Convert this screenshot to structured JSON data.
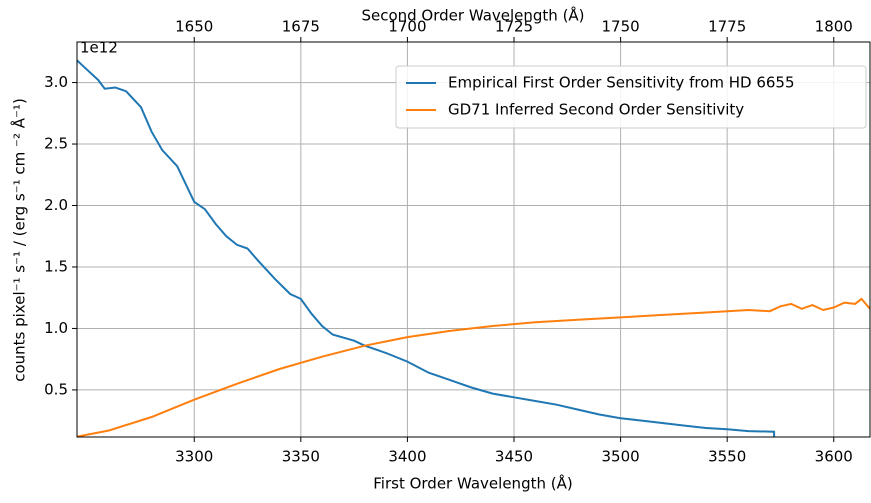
{
  "chart_data": {
    "type": "line",
    "xlabel": "First Order Wavelength (Å)",
    "x2label": "Second Order Wavelength (Å)",
    "ylabel": "counts pixel⁻¹ s⁻¹ / (erg s⁻¹ cm ⁻² Å⁻¹)",
    "y_offset_label": "1e12",
    "xlim": [
      3245,
      3617
    ],
    "xticks": [
      3300,
      3350,
      3400,
      3450,
      3500,
      3550,
      3600
    ],
    "x2lim": [
      1622.5,
      1808.5
    ],
    "x2ticks": [
      1650,
      1675,
      1700,
      1725,
      1750,
      1775,
      1800
    ],
    "ylim": [
      0.117,
      3.33
    ],
    "yticks": [
      0.5,
      {
        "value": 1,
        "label": "1.0"
      },
      1.5,
      {
        "value": 2,
        "label": "2.0"
      },
      2.5,
      {
        "value": 3,
        "label": "3.0"
      }
    ],
    "grid": true,
    "legend": "upper right",
    "series": [
      {
        "name": "Empirical First Order Sensitivity from HD 6655",
        "color": "#1f77b4",
        "x": [
          3245,
          3250,
          3255,
          3258,
          3263,
          3268,
          3275,
          3280,
          3285,
          3292,
          3300,
          3305,
          3310,
          3315,
          3320,
          3325,
          3330,
          3338,
          3345,
          3350,
          3355,
          3360,
          3365,
          3375,
          3380,
          3390,
          3400,
          3410,
          3420,
          3430,
          3440,
          3450,
          3460,
          3470,
          3480,
          3490,
          3500,
          3510,
          3520,
          3530,
          3540,
          3550,
          3560,
          3572,
          3572
        ],
        "values": [
          3.18,
          3.1,
          3.02,
          2.95,
          2.96,
          2.93,
          2.8,
          2.6,
          2.45,
          2.32,
          2.03,
          1.97,
          1.85,
          1.75,
          1.68,
          1.65,
          1.55,
          1.4,
          1.28,
          1.24,
          1.12,
          1.02,
          0.95,
          0.9,
          0.86,
          0.8,
          0.73,
          0.64,
          0.58,
          0.52,
          0.47,
          0.44,
          0.41,
          0.38,
          0.34,
          0.3,
          0.27,
          0.25,
          0.23,
          0.21,
          0.19,
          0.18,
          0.165,
          0.16,
          0.117
        ]
      },
      {
        "name": "GD71 Inferred Second Order Sensitivity",
        "color": "#ff7f0e",
        "x": [
          3245,
          3260,
          3280,
          3300,
          3320,
          3340,
          3360,
          3380,
          3400,
          3420,
          3440,
          3460,
          3480,
          3500,
          3520,
          3540,
          3560,
          3570,
          3575,
          3580,
          3585,
          3590,
          3595,
          3600,
          3605,
          3610,
          3613,
          3617
        ],
        "values": [
          0.12,
          0.17,
          0.28,
          0.42,
          0.55,
          0.67,
          0.77,
          0.86,
          0.93,
          0.98,
          1.02,
          1.05,
          1.07,
          1.09,
          1.11,
          1.13,
          1.15,
          1.14,
          1.18,
          1.2,
          1.16,
          1.19,
          1.15,
          1.17,
          1.21,
          1.2,
          1.24,
          1.16
        ]
      }
    ]
  }
}
